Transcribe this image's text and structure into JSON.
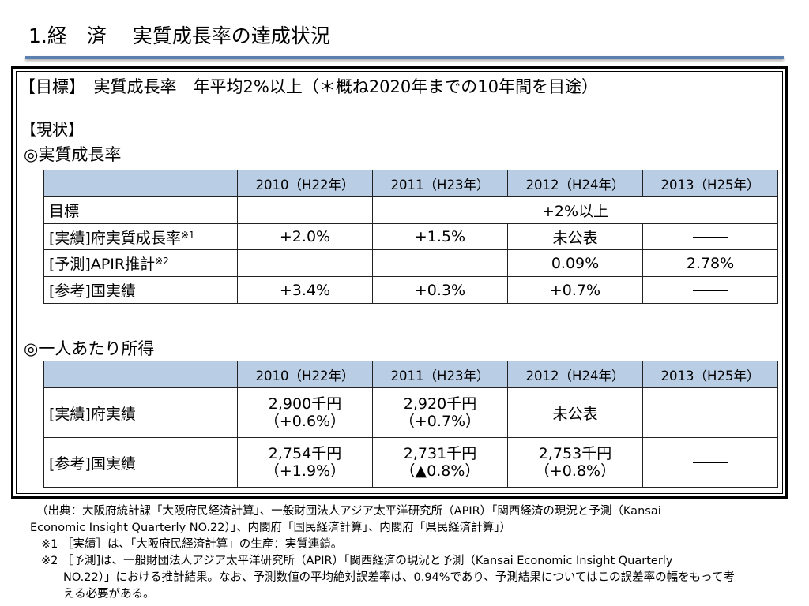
{
  "header": {
    "title": "1.経　済　 実質成長率の達成状況"
  },
  "goal": {
    "text": "【目標】　実質成長率　年平均2%以上（＊概ね2020年までの10年間を目途）"
  },
  "status_label": "【現状】",
  "growth": {
    "heading": "◎実質成長率",
    "columns": [
      "2010（H22年）",
      "2011（H23年）",
      "2012（H24年）",
      "2013（H25年）"
    ],
    "rows": {
      "target": {
        "label": "目標",
        "merged": "+2%以上"
      },
      "actual": {
        "label": "[実績]府実質成長率",
        "note": "※1",
        "v2010": "+2.0%",
        "v2011": "+1.5%",
        "v2012": "未公表"
      },
      "forecast": {
        "label": "[予測]APIR推計",
        "note": "※2",
        "v2012": "0.09%",
        "v2013": "2.78%"
      },
      "national": {
        "label": "[参考]国実績",
        "v2010": "+3.4%",
        "v2011": "+0.3%",
        "v2012": "+0.7%"
      }
    }
  },
  "income": {
    "heading": "◎一人あたり所得",
    "columns": [
      "2010（H22年）",
      "2011（H23年）",
      "2012（H24年）",
      "2013（H25年）"
    ],
    "rows": {
      "actual": {
        "label": "[実績]府実績",
        "v2010": "2,900千円",
        "v2010b": "（+0.6%）",
        "v2011": "2,920千円",
        "v2011b": "（+0.7%）",
        "v2012": "未公表"
      },
      "national": {
        "label": "[参考]国実績",
        "v2010": "2,754千円",
        "v2010b": "（+1.9%）",
        "v2011": "2,731千円",
        "v2011b": "（▲0.8%）",
        "v2012": "2,753千円",
        "v2012b": "（+0.8%）"
      }
    }
  },
  "footer": {
    "source1": "（出典：大阪府統計課「大阪府民経済計算」、一般財団法人アジア太平洋研究所（APIR）「関西経済の現況と予測（Kansai",
    "source2": "Economic Insight Quarterly NO.22）」、内閣府「国民経済計算」、内閣府「県民経済計算」）",
    "note1": "※1 ［実績］は、「大阪府民経済計算」の生産：実質連鎖。",
    "note2a": "※2 ［予測]は、一般財団法人アジア太平洋研究所（APIR）「関西経済の現況と予測（Kansai Economic Insight Quarterly",
    "note2b": "NO.22）」における推計結果。なお、予測数値の平均絶対誤差率は、0.94%であり、予測結果についてはこの誤差率の幅をもって考",
    "note2c": "える必要がある。"
  }
}
